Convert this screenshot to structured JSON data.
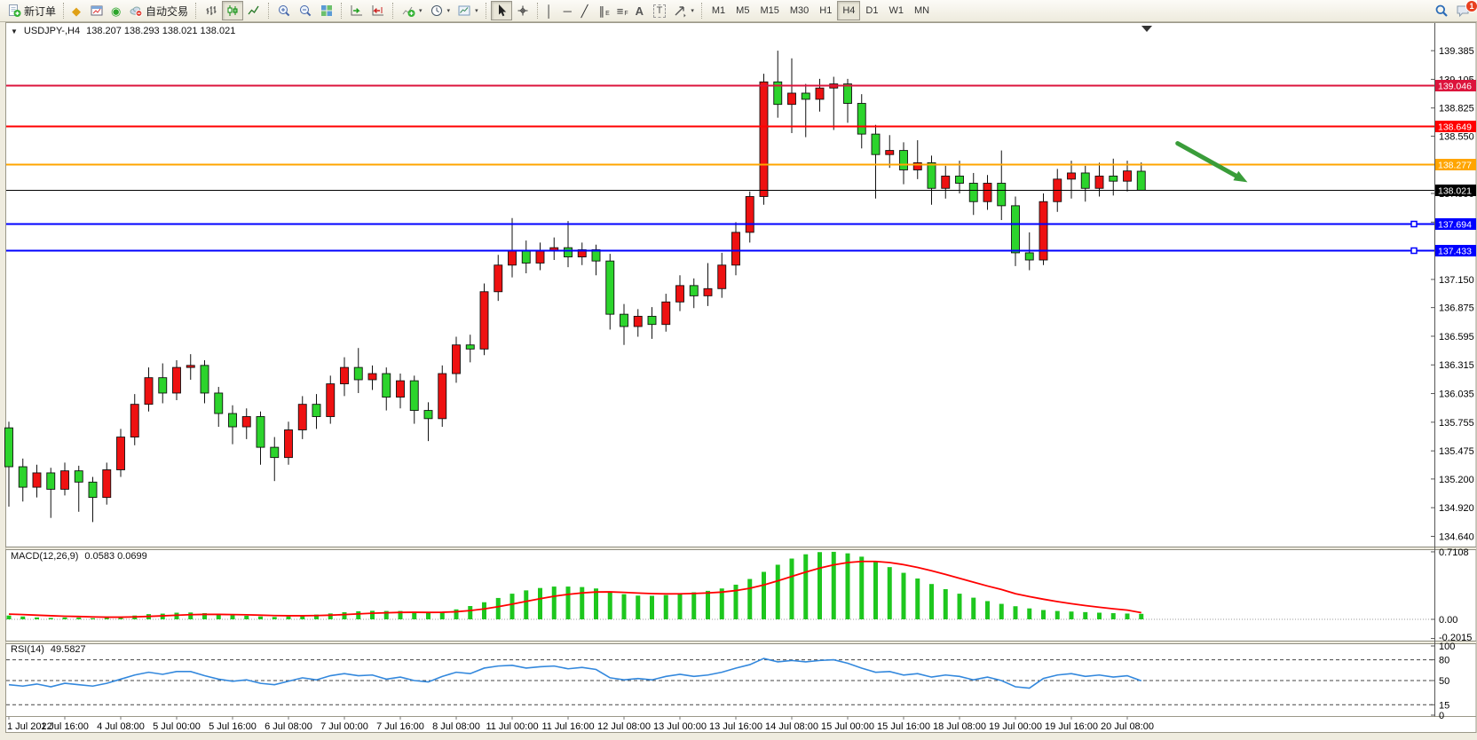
{
  "toolbar": {
    "new_order_label": "新订单",
    "autotrade_label": "自动交易",
    "timeframes": [
      "M1",
      "M5",
      "M15",
      "M30",
      "H1",
      "H4",
      "D1",
      "W1",
      "MN"
    ],
    "active_timeframe": "H4",
    "notification_count": "1",
    "glyphs": {
      "gold": "◆",
      "signal": "◉",
      "crosshair": "+",
      "vline": "│",
      "hline": "─",
      "trendline": "╱",
      "channel": "∥",
      "channel_sub": "E",
      "fibo": "≡",
      "fibo_sub": "F",
      "text_tool": "A",
      "label_tool": "T",
      "caret": "▾",
      "chart_dropdown": "▼"
    }
  },
  "chart": {
    "title": "USDJPY-,H4",
    "ohlc_text": "138.207 138.293 138.021 138.021"
  },
  "indicators": {
    "macd": {
      "name": "MACD(12,26,9)",
      "values_text": "0.0583 0.0699"
    },
    "rsi": {
      "name": "RSI(14)",
      "values_text": "49.5827"
    }
  },
  "chart_data": [
    {
      "type": "candlestick",
      "title": "USDJPY-,H4",
      "ylim": [
        134.54,
        139.62
      ],
      "up_color": "#ee1111",
      "down_color": "#2cd42c",
      "yticks": [
        "139.385",
        "139.105",
        "138.825",
        "138.550",
        "138.270",
        "137.990",
        "137.710",
        "137.430",
        "137.150",
        "136.875",
        "136.595",
        "136.315",
        "136.035",
        "135.755",
        "135.475",
        "135.200",
        "134.920",
        "134.640"
      ],
      "x_labels": [
        "1 Jul 2022",
        "1 Jul 16:00",
        "4 Jul 08:00",
        "5 Jul 00:00",
        "5 Jul 16:00",
        "6 Jul 08:00",
        "7 Jul 00:00",
        "7 Jul 16:00",
        "8 Jul 08:00",
        "11 Jul 00:00",
        "11 Jul 16:00",
        "12 Jul 08:00",
        "13 Jul 00:00",
        "13 Jul 16:00",
        "14 Jul 08:00",
        "15 Jul 00:00",
        "15 Jul 16:00",
        "18 Jul 08:00",
        "19 Jul 00:00",
        "19 Jul 16:00",
        "20 Jul 08:00"
      ],
      "label_every_bars": 4,
      "hlines": [
        {
          "price": 139.046,
          "label": "139.046",
          "color": "#dc143c",
          "width": 2,
          "handle": false,
          "role": "resistance"
        },
        {
          "price": 138.649,
          "label": "138.649",
          "color": "#ff0000",
          "width": 2,
          "handle": false,
          "role": "resistance"
        },
        {
          "price": 138.277,
          "label": "138.277",
          "color": "#ffa500",
          "width": 2,
          "handle": false,
          "role": "pivot"
        },
        {
          "price": 138.021,
          "label": "138.021",
          "color": "#000000",
          "width": 1,
          "handle": false,
          "role": "bid"
        },
        {
          "price": 137.694,
          "label": "137.694",
          "color": "#0000ff",
          "width": 2,
          "handle": true,
          "role": "support"
        },
        {
          "price": 137.433,
          "label": "137.433",
          "color": "#0000ff",
          "width": 2,
          "handle": true,
          "role": "support"
        }
      ],
      "annotation_arrow": {
        "from_bar": 83.6,
        "from_price": 138.48,
        "to_bar": 88.6,
        "to_price": 138.1,
        "color": "#3a9d3a"
      },
      "ohlc": [
        [
          135.7,
          135.76,
          134.93,
          135.32
        ],
        [
          135.32,
          135.4,
          134.98,
          135.12
        ],
        [
          135.12,
          135.34,
          135.02,
          135.26
        ],
        [
          135.26,
          135.31,
          134.82,
          135.1
        ],
        [
          135.1,
          135.36,
          135.04,
          135.28
        ],
        [
          135.28,
          135.33,
          134.88,
          135.17
        ],
        [
          135.17,
          135.22,
          134.78,
          135.02
        ],
        [
          135.02,
          135.36,
          134.95,
          135.29
        ],
        [
          135.29,
          135.69,
          135.22,
          135.61
        ],
        [
          135.61,
          136.03,
          135.53,
          135.93
        ],
        [
          135.93,
          136.29,
          135.86,
          136.19
        ],
        [
          136.19,
          136.33,
          135.94,
          136.04
        ],
        [
          136.04,
          136.36,
          135.97,
          136.29
        ],
        [
          136.29,
          136.42,
          136.17,
          136.31
        ],
        [
          136.31,
          136.36,
          135.94,
          136.04
        ],
        [
          136.04,
          136.1,
          135.71,
          135.84
        ],
        [
          135.84,
          135.92,
          135.54,
          135.71
        ],
        [
          135.71,
          135.89,
          135.59,
          135.81
        ],
        [
          135.81,
          135.86,
          135.34,
          135.51
        ],
        [
          135.51,
          135.61,
          135.18,
          135.41
        ],
        [
          135.41,
          135.76,
          135.34,
          135.68
        ],
        [
          135.68,
          136.01,
          135.59,
          135.93
        ],
        [
          135.93,
          136.03,
          135.69,
          135.81
        ],
        [
          135.81,
          136.21,
          135.74,
          136.13
        ],
        [
          136.13,
          136.39,
          136.01,
          136.29
        ],
        [
          136.29,
          136.48,
          136.04,
          136.17
        ],
        [
          136.17,
          136.31,
          136.07,
          136.23
        ],
        [
          136.23,
          136.29,
          135.87,
          136.0
        ],
        [
          136.0,
          136.23,
          135.89,
          136.16
        ],
        [
          136.16,
          136.21,
          135.74,
          135.87
        ],
        [
          135.87,
          135.95,
          135.57,
          135.79
        ],
        [
          135.79,
          136.31,
          135.71,
          136.23
        ],
        [
          136.23,
          136.59,
          136.14,
          136.51
        ],
        [
          136.51,
          136.61,
          136.34,
          136.47
        ],
        [
          136.47,
          137.11,
          136.41,
          137.03
        ],
        [
          137.03,
          137.39,
          136.94,
          137.29
        ],
        [
          137.29,
          137.75,
          137.17,
          137.43
        ],
        [
          137.43,
          137.53,
          137.21,
          137.31
        ],
        [
          137.31,
          137.51,
          137.24,
          137.43
        ],
        [
          137.43,
          137.56,
          137.34,
          137.46
        ],
        [
          137.46,
          137.72,
          137.27,
          137.37
        ],
        [
          137.37,
          137.51,
          137.29,
          137.44
        ],
        [
          137.44,
          137.49,
          137.19,
          137.33
        ],
        [
          137.33,
          137.4,
          136.66,
          136.81
        ],
        [
          136.81,
          136.91,
          136.51,
          136.69
        ],
        [
          136.69,
          136.86,
          136.59,
          136.79
        ],
        [
          136.79,
          136.88,
          136.57,
          136.71
        ],
        [
          136.71,
          137.01,
          136.64,
          136.93
        ],
        [
          136.93,
          137.19,
          136.84,
          137.09
        ],
        [
          137.09,
          137.16,
          136.87,
          136.99
        ],
        [
          136.99,
          137.31,
          136.89,
          137.06
        ],
        [
          137.06,
          137.41,
          136.97,
          137.29
        ],
        [
          137.29,
          137.71,
          137.19,
          137.61
        ],
        [
          137.61,
          138.01,
          137.51,
          137.96
        ],
        [
          137.96,
          139.16,
          137.88,
          139.08
        ],
        [
          139.08,
          139.385,
          138.73,
          138.86
        ],
        [
          138.86,
          139.31,
          138.58,
          138.97
        ],
        [
          138.97,
          139.06,
          138.54,
          138.91
        ],
        [
          138.91,
          139.11,
          138.79,
          139.02
        ],
        [
          139.02,
          139.13,
          138.61,
          139.06
        ],
        [
          139.06,
          139.11,
          138.68,
          138.87
        ],
        [
          138.87,
          138.96,
          138.43,
          138.57
        ],
        [
          138.57,
          138.66,
          137.94,
          138.37
        ],
        [
          138.37,
          138.56,
          138.24,
          138.41
        ],
        [
          138.41,
          138.49,
          138.08,
          138.22
        ],
        [
          138.22,
          138.51,
          138.13,
          138.29
        ],
        [
          138.29,
          138.36,
          137.88,
          138.04
        ],
        [
          138.04,
          138.26,
          137.94,
          138.16
        ],
        [
          138.16,
          138.31,
          137.99,
          138.09
        ],
        [
          138.09,
          138.19,
          137.78,
          137.91
        ],
        [
          137.91,
          138.17,
          137.83,
          138.09
        ],
        [
          138.09,
          138.41,
          137.73,
          137.87
        ],
        [
          137.87,
          137.96,
          137.28,
          137.41
        ],
        [
          137.41,
          137.61,
          137.24,
          137.34
        ],
        [
          137.34,
          137.99,
          137.29,
          137.91
        ],
        [
          137.91,
          138.23,
          137.81,
          138.13
        ],
        [
          138.13,
          138.31,
          137.94,
          138.19
        ],
        [
          138.19,
          138.26,
          137.91,
          138.04
        ],
        [
          138.04,
          138.29,
          137.96,
          138.16
        ],
        [
          138.16,
          138.33,
          137.97,
          138.11
        ],
        [
          138.11,
          138.31,
          138.01,
          138.21
        ],
        [
          138.207,
          138.293,
          138.021,
          138.021
        ]
      ]
    },
    {
      "type": "bar",
      "title": "MACD(12,26,9)",
      "yticks": [
        "0.7108",
        "0.00",
        "-0.2015"
      ],
      "histogram_color": "#1ec71e",
      "signal_color": "#ff0000",
      "values": [
        0.04,
        0.03,
        0.02,
        0.015,
        0.02,
        0.018,
        0.012,
        0.015,
        0.025,
        0.04,
        0.055,
        0.06,
        0.07,
        0.072,
        0.065,
        0.052,
        0.042,
        0.038,
        0.03,
        0.025,
        0.03,
        0.04,
        0.05,
        0.062,
        0.075,
        0.085,
        0.09,
        0.088,
        0.088,
        0.08,
        0.07,
        0.08,
        0.105,
        0.14,
        0.18,
        0.225,
        0.27,
        0.305,
        0.33,
        0.345,
        0.345,
        0.34,
        0.325,
        0.295,
        0.265,
        0.25,
        0.248,
        0.255,
        0.272,
        0.285,
        0.3,
        0.325,
        0.365,
        0.425,
        0.5,
        0.575,
        0.64,
        0.685,
        0.708,
        0.711,
        0.695,
        0.66,
        0.61,
        0.55,
        0.49,
        0.43,
        0.372,
        0.318,
        0.27,
        0.228,
        0.192,
        0.163,
        0.138,
        0.115,
        0.098,
        0.088,
        0.082,
        0.076,
        0.07,
        0.065,
        0.061,
        0.058
      ],
      "signal": [
        0.055,
        0.05,
        0.044,
        0.038,
        0.033,
        0.03,
        0.026,
        0.023,
        0.023,
        0.026,
        0.031,
        0.037,
        0.043,
        0.049,
        0.052,
        0.052,
        0.05,
        0.048,
        0.044,
        0.04,
        0.038,
        0.038,
        0.04,
        0.044,
        0.05,
        0.057,
        0.064,
        0.069,
        0.073,
        0.074,
        0.073,
        0.074,
        0.08,
        0.092,
        0.11,
        0.133,
        0.16,
        0.189,
        0.217,
        0.243,
        0.263,
        0.278,
        0.288,
        0.289,
        0.284,
        0.277,
        0.271,
        0.268,
        0.269,
        0.272,
        0.278,
        0.287,
        0.303,
        0.327,
        0.362,
        0.405,
        0.452,
        0.498,
        0.54,
        0.574,
        0.598,
        0.61,
        0.61,
        0.598,
        0.576,
        0.547,
        0.512,
        0.473,
        0.432,
        0.391,
        0.351,
        0.314,
        0.27,
        0.24,
        0.212,
        0.187,
        0.165,
        0.145,
        0.127,
        0.111,
        0.097,
        0.07
      ]
    },
    {
      "type": "line",
      "title": "RSI(14)",
      "ylim": [
        0,
        100
      ],
      "yticks": [
        "100",
        "80",
        "50",
        "15",
        "0"
      ],
      "levels": [
        80,
        50,
        15
      ],
      "line_color": "#3388dd",
      "values": [
        44,
        42,
        45,
        41,
        46,
        44,
        42,
        46,
        52,
        58,
        62,
        59,
        63,
        63,
        57,
        52,
        49,
        51,
        46,
        44,
        49,
        54,
        51,
        57,
        60,
        57,
        58,
        52,
        55,
        50,
        48,
        56,
        62,
        60,
        68,
        71,
        72,
        68,
        70,
        71,
        67,
        69,
        66,
        54,
        51,
        53,
        51,
        56,
        59,
        56,
        58,
        62,
        68,
        73,
        82,
        77,
        79,
        77,
        79,
        80,
        75,
        68,
        62,
        63,
        58,
        60,
        55,
        58,
        56,
        51,
        55,
        50,
        41,
        39,
        53,
        58,
        60,
        56,
        58,
        55,
        57,
        49.6
      ]
    }
  ]
}
